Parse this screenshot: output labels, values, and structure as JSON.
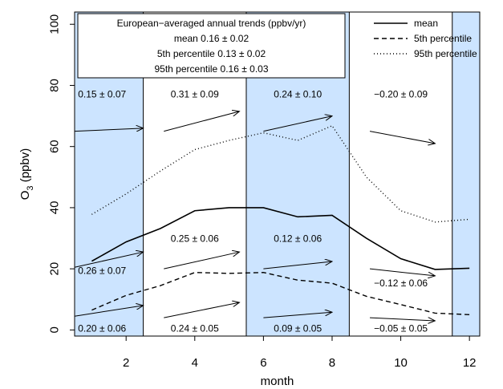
{
  "chart_data": {
    "type": "line",
    "xlabel": "month",
    "ylabel": "O3 (ppbv)",
    "ylabel_main": "O",
    "ylabel_sub": "3",
    "ylabel_rest": " (ppbv)",
    "xlim": [
      0.5,
      12.3
    ],
    "ylim": [
      -2,
      104
    ],
    "x_ticks": [
      2,
      4,
      6,
      8,
      10,
      12
    ],
    "y_ticks": [
      0,
      20,
      40,
      60,
      80,
      100
    ],
    "shaded_seasons": [
      {
        "from": 0.5,
        "to": 2.5
      },
      {
        "from": 5.5,
        "to": 8.5
      },
      {
        "from": 11.5,
        "to": 12.3
      }
    ],
    "shade_color": "#cce4ff",
    "season_dividers": [
      2.5,
      5.5,
      8.5,
      11.5
    ],
    "x": [
      1,
      2,
      3,
      4,
      5,
      6,
      7,
      8,
      9,
      10,
      11,
      12
    ],
    "series": [
      {
        "name": "mean",
        "style": "solid",
        "values": [
          22.5,
          28.8,
          33.2,
          39.0,
          40.0,
          40.0,
          37.0,
          37.5,
          30.0,
          23.3,
          19.8,
          20.2
        ]
      },
      {
        "name": "5th percentile",
        "style": "dashed",
        "values": [
          6.5,
          11.3,
          14.5,
          18.8,
          18.5,
          18.8,
          16.3,
          15.3,
          11.0,
          8.3,
          5.5,
          5.0
        ]
      },
      {
        "name": "95th percentile",
        "style": "dotted",
        "values": [
          37.8,
          44.5,
          52.0,
          59.0,
          62.0,
          64.5,
          62.0,
          66.8,
          50.0,
          39.0,
          35.3,
          36.2
        ]
      }
    ],
    "trend_arrows": [
      {
        "x1": 0.5,
        "y1": 65.0,
        "x2": 2.5,
        "y2": 66.0
      },
      {
        "x1": 3.1,
        "y1": 65.0,
        "x2": 5.3,
        "y2": 71.5
      },
      {
        "x1": 6.0,
        "y1": 65.0,
        "x2": 8.0,
        "y2": 70.0
      },
      {
        "x1": 9.1,
        "y1": 65.0,
        "x2": 11.0,
        "y2": 61.0
      },
      {
        "x1": 0.5,
        "y1": 20.5,
        "x2": 2.5,
        "y2": 25.5
      },
      {
        "x1": 3.1,
        "y1": 20.0,
        "x2": 5.3,
        "y2": 25.5
      },
      {
        "x1": 6.0,
        "y1": 20.0,
        "x2": 8.0,
        "y2": 22.4
      },
      {
        "x1": 9.1,
        "y1": 20.0,
        "x2": 11.0,
        "y2": 17.7
      },
      {
        "x1": 0.5,
        "y1": 4.5,
        "x2": 2.5,
        "y2": 8.0
      },
      {
        "x1": 3.1,
        "y1": 4.0,
        "x2": 5.3,
        "y2": 9.0
      },
      {
        "x1": 6.0,
        "y1": 4.0,
        "x2": 8.0,
        "y2": 5.8
      },
      {
        "x1": 9.1,
        "y1": 4.0,
        "x2": 11.0,
        "y2": 3.0
      }
    ],
    "annotations": [
      {
        "text": "0.15 ± 0.07",
        "x": 1.3,
        "y": 76.0
      },
      {
        "text": "0.31 ± 0.09",
        "x": 4.0,
        "y": 76.0
      },
      {
        "text": "0.24 ± 0.10",
        "x": 7.0,
        "y": 76.0
      },
      {
        "text": "−0.20 ± 0.09",
        "x": 10.0,
        "y": 76.0
      },
      {
        "text": "0.26 ± 0.07",
        "x": 1.3,
        "y": 18.3
      },
      {
        "text": "0.25 ± 0.06",
        "x": 4.0,
        "y": 28.8
      },
      {
        "text": "0.12 ± 0.06",
        "x": 7.0,
        "y": 28.8
      },
      {
        "text": "−0.12 ± 0.06",
        "x": 10.0,
        "y": 14.3
      },
      {
        "text": "0.20 ± 0.06",
        "x": 1.3,
        "y": -0.5
      },
      {
        "text": "0.24 ± 0.05",
        "x": 4.0,
        "y": -0.5
      },
      {
        "text": "0.09 ± 0.05",
        "x": 7.0,
        "y": -0.5
      },
      {
        "text": "−0.05 ± 0.05",
        "x": 10.0,
        "y": -0.5
      }
    ],
    "summary_box": {
      "lines": [
        "European−averaged annual trends (ppbv/yr)",
        "mean 0.16 ± 0.02",
        "5th percentile 0.13 ± 0.02",
        "95th percentile 0.16 ± 0.03"
      ]
    },
    "legend": {
      "placement": "top-right",
      "entries": [
        "mean",
        "5th percentile",
        "95th percentile"
      ]
    },
    "grid": false
  }
}
